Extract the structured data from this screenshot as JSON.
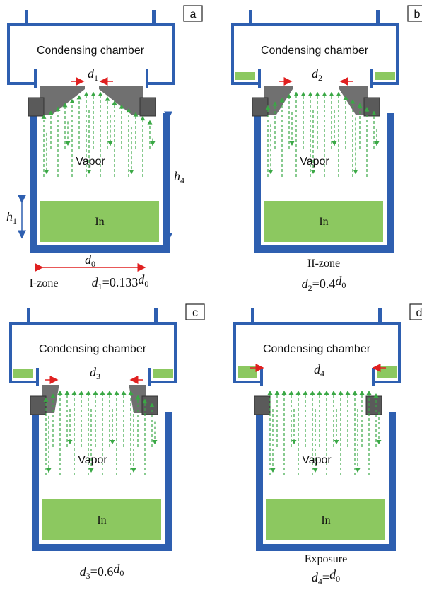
{
  "panels": [
    {
      "label": "a",
      "chamber": "Condensing chamber",
      "gap_label": [
        "d",
        "1"
      ],
      "vapor": "Vapor",
      "melt": "In",
      "zone": "I-zone",
      "formula": [
        "d",
        "1",
        "=0.133",
        "d",
        "0"
      ]
    },
    {
      "label": "b",
      "chamber": "Condensing chamber",
      "gap_label": [
        "d",
        "2"
      ],
      "vapor": "Vapor",
      "melt": "In",
      "zone": "II-zone",
      "formula": [
        "d",
        "2",
        "=0.4",
        "d",
        "0"
      ]
    },
    {
      "label": "c",
      "chamber": "Condensing chamber",
      "gap_label": [
        "d",
        "3"
      ],
      "vapor": "Vapor",
      "melt": "In",
      "formula": [
        "d",
        "3",
        "=0.6",
        "d",
        "0"
      ]
    },
    {
      "label": "d",
      "chamber": "Condensing chamber",
      "gap_label": [
        "d",
        "4"
      ],
      "vapor": "Vapor",
      "melt": "In",
      "zone": "Exposure",
      "formula": [
        "d",
        "4",
        "=",
        "d",
        "0"
      ]
    }
  ],
  "dimensions": {
    "h1": [
      "h",
      "1"
    ],
    "h4": [
      "h",
      "4"
    ],
    "d0": [
      "d",
      "0"
    ]
  }
}
